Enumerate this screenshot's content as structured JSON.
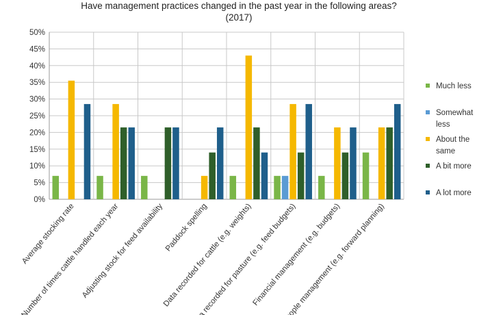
{
  "chart_data": {
    "type": "bar",
    "title": [
      "Have management practices changed in the past year in the following areas?",
      "(2017)"
    ],
    "xlabel": "",
    "ylabel": "",
    "ylim": [
      0,
      50
    ],
    "ytick_step": 5,
    "ytick_suffix": "%",
    "grid": true,
    "legend_position": "right",
    "categories": [
      "Average stocking rate",
      "Number of times cattle handled each year",
      "Adjusting stock for feed availability",
      "Paddock spelling",
      "Data recorded for cattle (e.g. weights)",
      "Data recorded for pasture (e.g. feed budgets)",
      "Financial management (e.g. budgets)",
      "People management (e.g. forward planning)"
    ],
    "series": [
      {
        "name": [
          "Much less"
        ],
        "color": "#7ab648",
        "values": [
          7,
          7,
          7,
          0,
          7,
          7,
          7,
          14
        ]
      },
      {
        "name": [
          "Somewhat",
          "less"
        ],
        "color": "#5a9bd4",
        "values": [
          0,
          0,
          0,
          0,
          0,
          7,
          0,
          0
        ]
      },
      {
        "name": [
          "About the",
          "same"
        ],
        "color": "#f5b800",
        "values": [
          35.5,
          28.5,
          0,
          7,
          43,
          28.5,
          21.5,
          21.5
        ]
      },
      {
        "name": [
          "A bit more"
        ],
        "color": "#2f5f2a",
        "values": [
          0,
          21.5,
          21.5,
          14,
          21.5,
          14,
          14,
          21.5
        ]
      },
      {
        "name": [
          "A lot more"
        ],
        "color": "#1f5f8b",
        "values": [
          28.5,
          21.5,
          21.5,
          21.5,
          14,
          28.5,
          21.5,
          28.5
        ]
      }
    ]
  }
}
